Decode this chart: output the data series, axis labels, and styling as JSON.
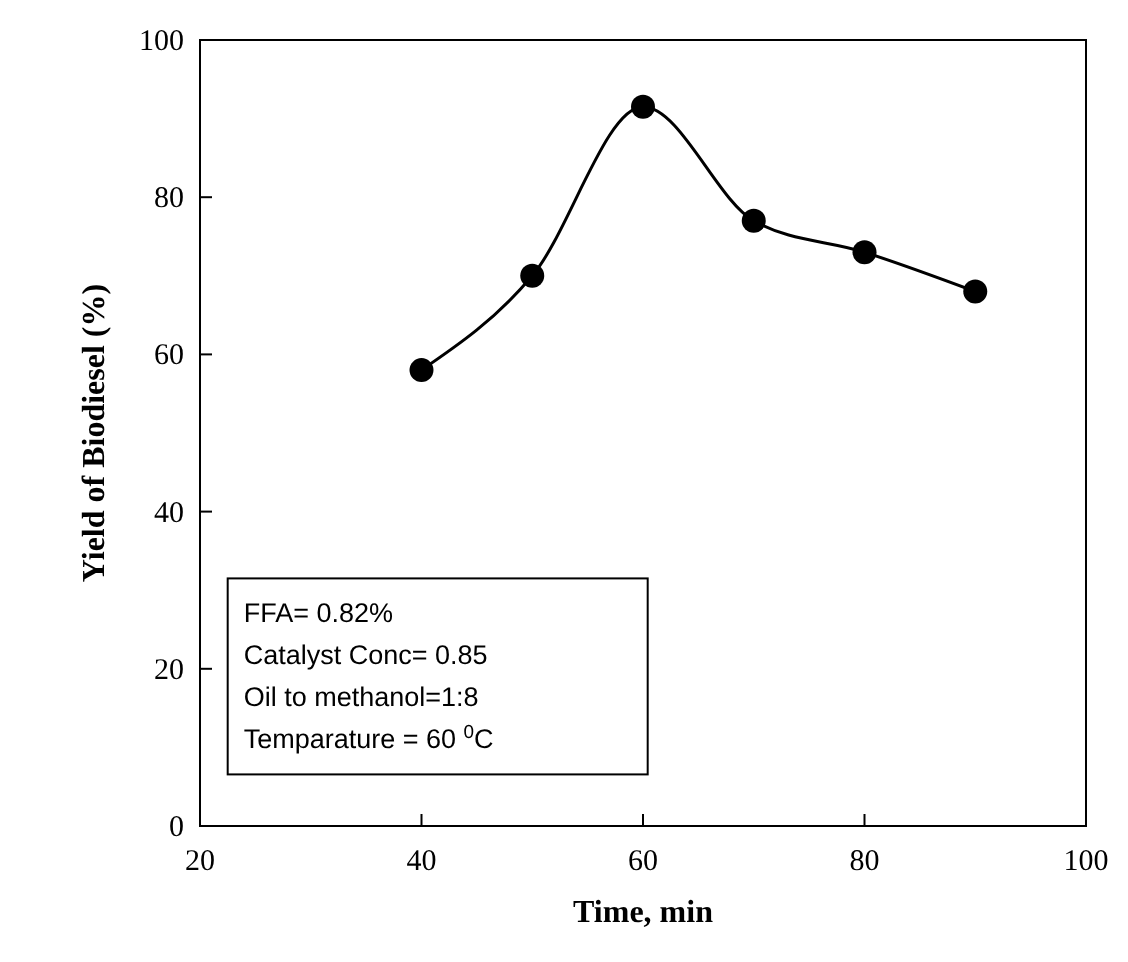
{
  "chart_data": {
    "type": "line",
    "xlabel": "Time, min",
    "ylabel": "Yield of Biodiesel (%)",
    "x": [
      40,
      50,
      60,
      70,
      80,
      90
    ],
    "series": [
      {
        "color": "#000000",
        "values": [
          58,
          70,
          91.5,
          77,
          73,
          68
        ]
      }
    ],
    "xlim": [
      20,
      100
    ],
    "xticks": [
      20,
      40,
      60,
      80,
      100
    ],
    "ylim": [
      0,
      100
    ],
    "yticks": [
      0,
      20,
      40,
      60,
      80,
      100
    ],
    "marker": "circle",
    "line_style": "solid",
    "grid": false,
    "annotations": [
      "FFA= 0.82%",
      "Catalyst Conc= 0.85",
      "Oil to methanol=1:8",
      "Temparature = 60 $^{0}$C"
    ]
  }
}
